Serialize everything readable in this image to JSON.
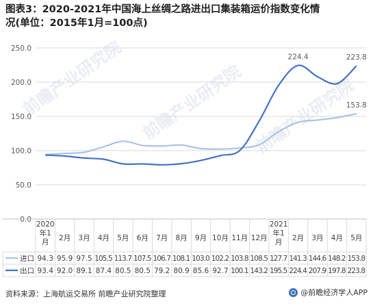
{
  "title_line1": "图表3：2020-2021年中国海上丝绸之路进出口集装箱运价指数变化情",
  "title_line2": "况(单位：2015年1月=100点)",
  "footer": {
    "source": "资料来源：上海航运交易所 前瞻产业研究院整理",
    "brand": "@前瞻经济学人APP"
  },
  "watermarks": [
    "前瞻产业研究院",
    "前瞻产业研究院",
    "前瞻产业研究院"
  ],
  "chart_data": {
    "type": "line",
    "categories": [
      "2020年1月",
      "2月",
      "3月",
      "4月",
      "5月",
      "6月",
      "7月",
      "8月",
      "9月",
      "10月",
      "11月",
      "12月",
      "2021年1月",
      "2月",
      "3月",
      "4月",
      "5月"
    ],
    "category_lines": [
      [
        "2020",
        "年1",
        "月"
      ],
      [
        "2月"
      ],
      [
        "3月"
      ],
      [
        "4月"
      ],
      [
        "5月"
      ],
      [
        "6月"
      ],
      [
        "7月"
      ],
      [
        "8月"
      ],
      [
        "9月"
      ],
      [
        "10月"
      ],
      [
        "11月"
      ],
      [
        "12月"
      ],
      [
        "2021",
        "年1",
        "月"
      ],
      [
        "2月"
      ],
      [
        "3月"
      ],
      [
        "4月"
      ],
      [
        "5月"
      ]
    ],
    "series": [
      {
        "name": "进口",
        "color": "#a9c4e4",
        "values": [
          94.3,
          95.9,
          97.5,
          105.5,
          113.7,
          107.5,
          106.7,
          108.1,
          103.0,
          102.2,
          103.8,
          108.5,
          127.7,
          141.3,
          144.6,
          148.2,
          153.8
        ],
        "table_text": [
          "94.3",
          "95.9",
          "97.5",
          "105.5",
          "113.7",
          "107.5",
          "106.7",
          "108.1",
          "103.0",
          "102.2",
          "103.8",
          "108.5",
          "127.7",
          "141.3",
          "144.6",
          "148.2",
          "153.8"
        ]
      },
      {
        "name": "出口",
        "color": "#4472c4",
        "values": [
          93.4,
          92.0,
          89.1,
          87.4,
          80.5,
          80.5,
          79.2,
          80.9,
          85.6,
          92.7,
          100.1,
          143.2,
          195.5,
          224.4,
          207.9,
          197.8,
          223.8
        ],
        "table_text": [
          "93.4",
          "92.0",
          "89.1",
          "87.4",
          "80.5",
          "80.5",
          "79.2",
          "80.9",
          "85.6",
          "92.7",
          "100.1",
          "143.2",
          "195.5",
          "224.4",
          "207.9",
          "197.8",
          "223.8"
        ]
      }
    ],
    "y_ticks": [
      "0.0",
      "50.0",
      "100.0",
      "150.0",
      "200.0",
      "250.0"
    ],
    "ylim": [
      0,
      250
    ],
    "annotations": [
      {
        "series": 1,
        "index": 13,
        "text": "224.4"
      },
      {
        "series": 1,
        "index": 16,
        "text": "223.8"
      },
      {
        "series": 0,
        "index": 16,
        "text": "153.8"
      }
    ],
    "grid": true,
    "legend": "bottom-table",
    "xlabel": "",
    "ylabel": ""
  }
}
